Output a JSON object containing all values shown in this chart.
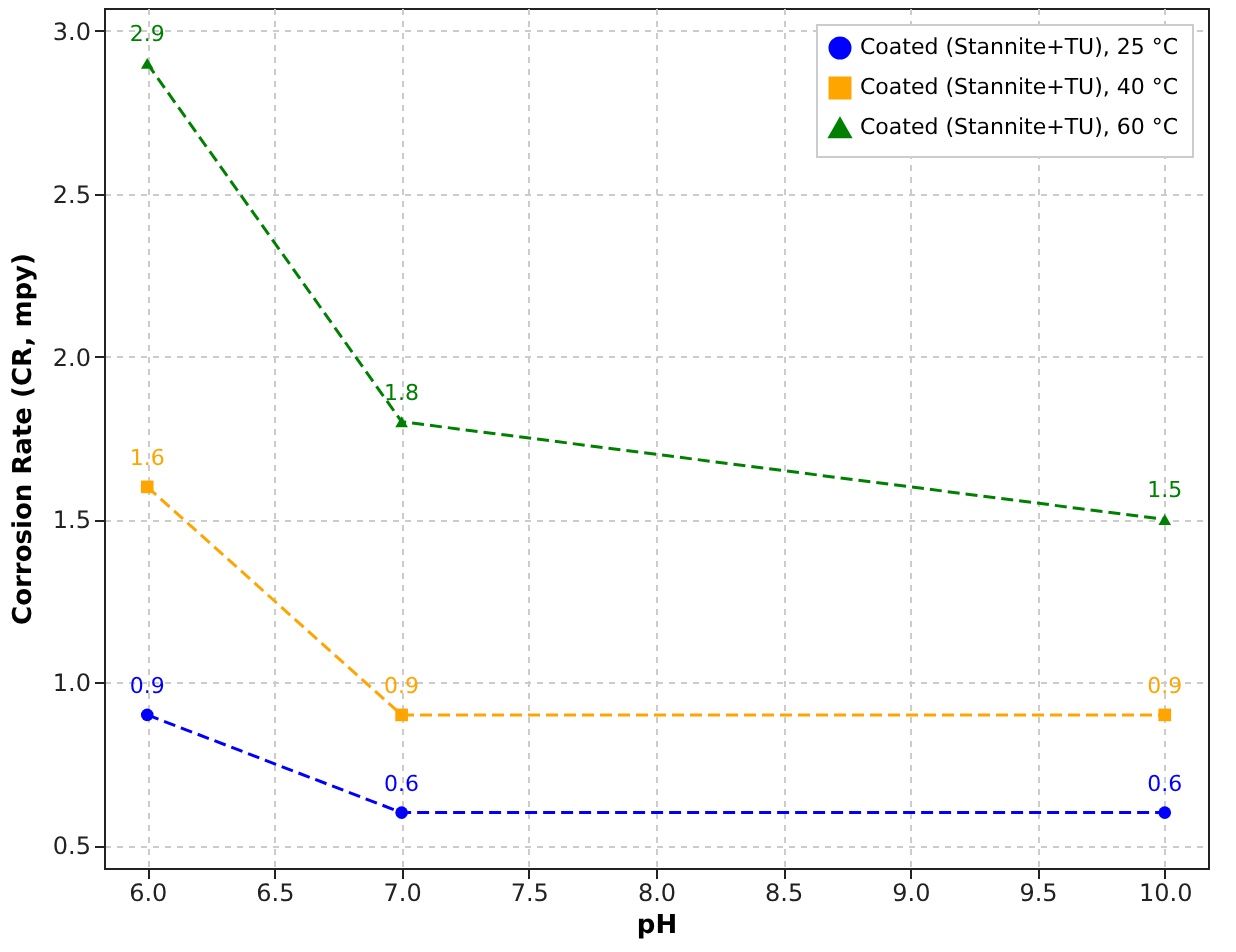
{
  "chart_data": {
    "type": "line",
    "xlabel": "pH",
    "ylabel": "Corrosion Rate (CR, mpy)",
    "x": [
      6,
      7,
      10
    ],
    "series": [
      {
        "name": "Coated (Stannite+TU), 25 °C",
        "color": "#0000ff",
        "marker": "circle",
        "values": [
          0.9,
          0.6,
          0.6
        ]
      },
      {
        "name": "Coated (Stannite+TU), 40 °C",
        "color": "#ffa500",
        "marker": "square",
        "values": [
          1.6,
          0.9,
          0.9
        ]
      },
      {
        "name": "Coated (Stannite+TU), 60 °C",
        "color": "#008000",
        "marker": "triangle",
        "values": [
          2.9,
          1.8,
          1.5
        ]
      }
    ],
    "xlim": [
      5.83,
      10.17
    ],
    "ylim": [
      0.43,
      3.07
    ],
    "xticks": [
      {
        "value": 6,
        "label": "6.0"
      },
      {
        "value": 6.5,
        "label": "6.5"
      },
      {
        "value": 7,
        "label": "7.0"
      },
      {
        "value": 7.5,
        "label": "7.5"
      },
      {
        "value": 8,
        "label": "8.0"
      },
      {
        "value": 8.5,
        "label": "8.5"
      },
      {
        "value": 9,
        "label": "9.0"
      },
      {
        "value": 9.5,
        "label": "9.5"
      },
      {
        "value": 10,
        "label": "10.0"
      }
    ],
    "yticks": [
      {
        "value": 0.5,
        "label": "0.5"
      },
      {
        "value": 1,
        "label": "1.0"
      },
      {
        "value": 1.5,
        "label": "1.5"
      },
      {
        "value": 2,
        "label": "2.0"
      },
      {
        "value": 2.5,
        "label": "2.5"
      },
      {
        "value": 3,
        "label": "3.0"
      }
    ],
    "grid": true,
    "legend": "top right",
    "line_style": "dashed",
    "data_labels": true
  }
}
